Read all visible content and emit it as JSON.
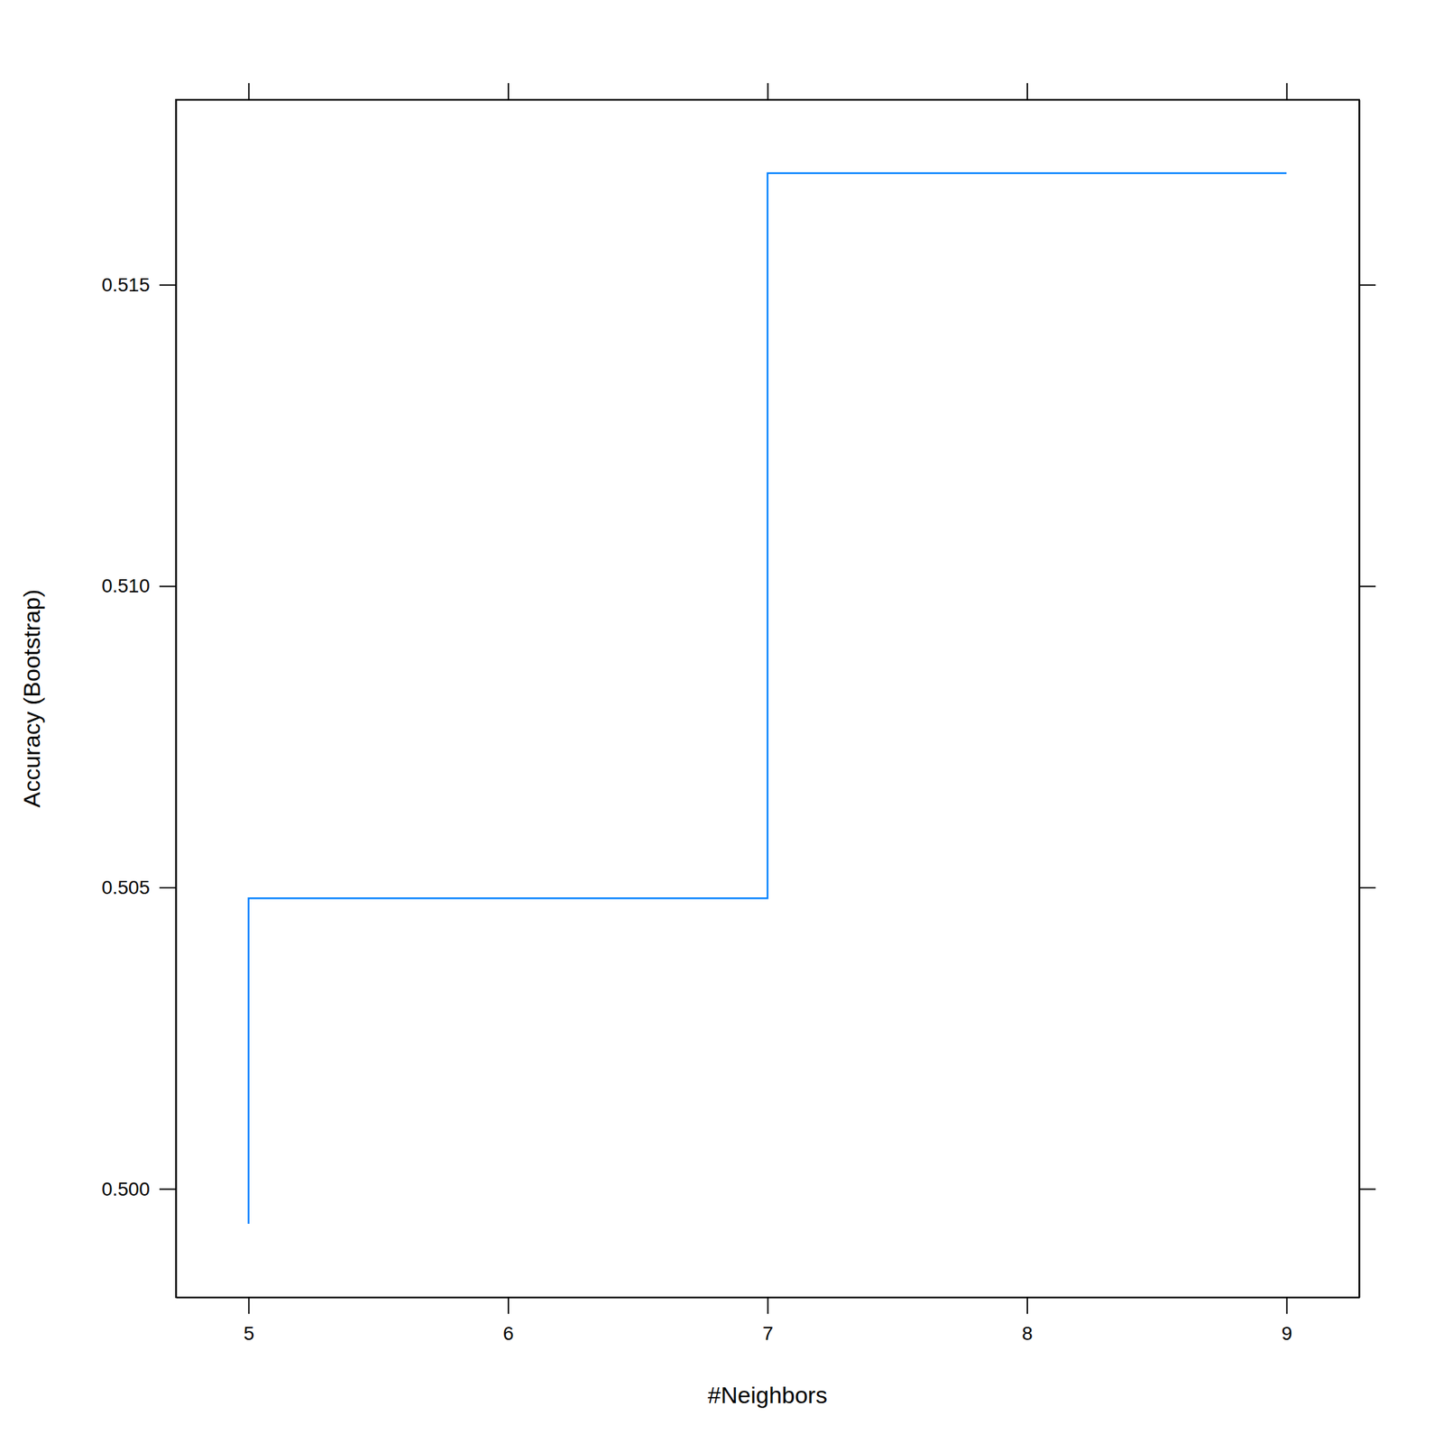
{
  "chart_data": {
    "type": "line",
    "xlabel": "#Neighbors",
    "ylabel": "Accuracy (Bootstrap)",
    "x": [
      5,
      7,
      9
    ],
    "values": [
      0.49942,
      0.50482,
      0.51685
    ],
    "color": "#0080ff",
    "line_style": "step",
    "marker": "none",
    "xlim": [
      4.72,
      9.28
    ],
    "xticks": [
      5,
      6,
      7,
      8,
      9
    ],
    "ylim": [
      0.4982,
      0.51807
    ],
    "yticks": [
      {
        "value": 0.5,
        "label": "0.500"
      },
      0.505,
      {
        "value": 0.51,
        "label": "0.510"
      },
      0.515
    ]
  }
}
